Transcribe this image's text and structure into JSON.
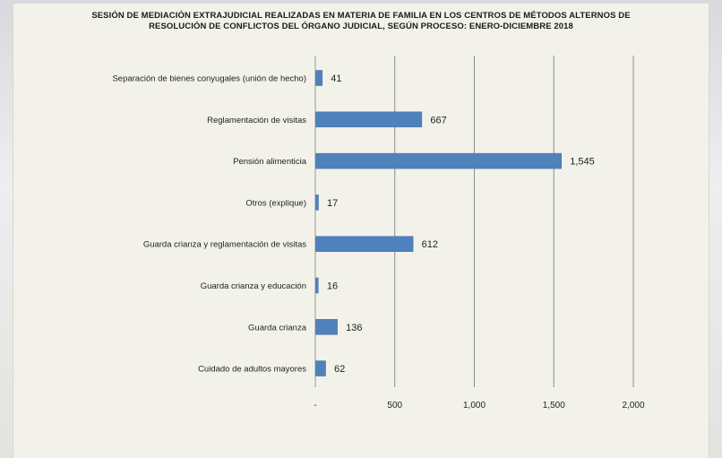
{
  "chart_data": {
    "type": "bar",
    "orientation": "horizontal",
    "title_lines": [
      "SESIÓN DE MEDIACIÓN EXTRAJUDICIAL REALIZADAS EN MATERIA DE FAMILIA EN LOS CENTROS DE MÉTODOS ALTERNOS DE",
      "RESOLUCIÓN DE CONFLICTOS DEL ÓRGANO JUDICIAL, SEGÚN  PROCESO: ENERO-DICIEMBRE 2018"
    ],
    "categories": [
      "Separación de bienes conyugales (unión de hecho)",
      "Reglamentación de visitas",
      "Pensión alimenticia",
      "Otros (explique)",
      "Guarda crianza y reglamentación de visitas",
      "Guarda crianza y educación",
      "Guarda crianza",
      "Cuidado de adultos mayores"
    ],
    "values": [
      41,
      667,
      1545,
      17,
      612,
      16,
      136,
      62
    ],
    "value_labels": [
      "41",
      "667",
      "1,545",
      "17",
      "612",
      "16",
      "136",
      "62"
    ],
    "xlim": [
      0,
      2000
    ],
    "xticks": [
      0,
      500,
      1000,
      1500,
      2000
    ],
    "xtick_labels": [
      "-",
      "500",
      "1,000",
      "1,500",
      "2,000"
    ],
    "grid": "vertical",
    "bar_color": "#4f81bd"
  }
}
